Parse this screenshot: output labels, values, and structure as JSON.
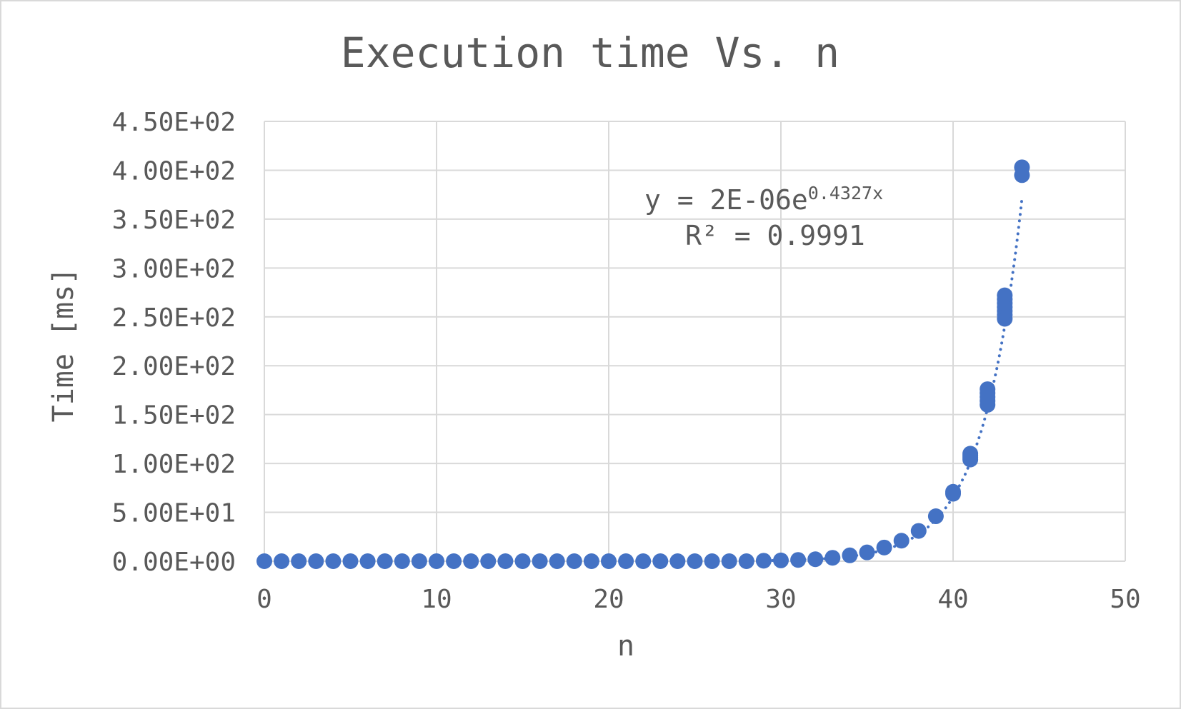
{
  "chart_data": {
    "type": "scatter",
    "title": "Execution time Vs. n",
    "xlabel": "n",
    "ylabel": "Time [ms]",
    "xlim": [
      0,
      50
    ],
    "ylim": [
      0,
      450
    ],
    "x_ticks": [
      "0",
      "10",
      "20",
      "30",
      "40",
      "50"
    ],
    "y_ticks": [
      "0.00E+00",
      "5.00E+01",
      "1.00E+02",
      "1.50E+02",
      "2.00E+02",
      "2.50E+02",
      "3.00E+02",
      "3.50E+02",
      "4.00E+02",
      "4.50E+02"
    ],
    "grid": true,
    "marker_color": "#4472C4",
    "trendline": {
      "type": "exponential",
      "equation_prefix": "y = 2E-06e",
      "equation_exponent": "0.4327x",
      "r_squared_text": "R² = 0.9991",
      "a": 2e-06,
      "b": 0.4327,
      "style": "dotted"
    },
    "points": [
      [
        0,
        0
      ],
      [
        1,
        0
      ],
      [
        2,
        0
      ],
      [
        3,
        0
      ],
      [
        4,
        0
      ],
      [
        5,
        0
      ],
      [
        6,
        0
      ],
      [
        7,
        0
      ],
      [
        8,
        0
      ],
      [
        9,
        0
      ],
      [
        10,
        0
      ],
      [
        11,
        0
      ],
      [
        12,
        0
      ],
      [
        13,
        0
      ],
      [
        14,
        0
      ],
      [
        15,
        0
      ],
      [
        16,
        0
      ],
      [
        17,
        0
      ],
      [
        18,
        0
      ],
      [
        19,
        0
      ],
      [
        20,
        0
      ],
      [
        21,
        0
      ],
      [
        22,
        0
      ],
      [
        23,
        0
      ],
      [
        24,
        0
      ],
      [
        25,
        0
      ],
      [
        26,
        0
      ],
      [
        27,
        0
      ],
      [
        28,
        0
      ],
      [
        29,
        0.5
      ],
      [
        30,
        0.8
      ],
      [
        31,
        1.3
      ],
      [
        32,
        2
      ],
      [
        33,
        3.5
      ],
      [
        34,
        6
      ],
      [
        35,
        9
      ],
      [
        36,
        14
      ],
      [
        37,
        21
      ],
      [
        38,
        31
      ],
      [
        39,
        46
      ],
      [
        40,
        69
      ],
      [
        40,
        71
      ],
      [
        41,
        104
      ],
      [
        41,
        106
      ],
      [
        41,
        108
      ],
      [
        41,
        110
      ],
      [
        42,
        160
      ],
      [
        42,
        164
      ],
      [
        42,
        168
      ],
      [
        42,
        172
      ],
      [
        42,
        176
      ],
      [
        43,
        248
      ],
      [
        43,
        252
      ],
      [
        43,
        256
      ],
      [
        43,
        260
      ],
      [
        43,
        264
      ],
      [
        43,
        268
      ],
      [
        43,
        272
      ],
      [
        44,
        395
      ],
      [
        44,
        403
      ]
    ]
  }
}
